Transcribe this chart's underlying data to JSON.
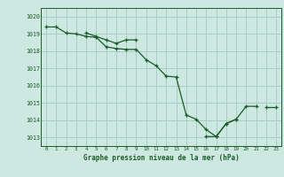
{
  "xlabel": "Graphe pression niveau de la mer (hPa)",
  "bg_color": "#cce8e0",
  "grid_color": "#a8ccc8",
  "line_color": "#1a5c28",
  "ylim": [
    1012.5,
    1020.5
  ],
  "xlim": [
    -0.5,
    23.5
  ],
  "yticks": [
    1013,
    1014,
    1015,
    1016,
    1017,
    1018,
    1019,
    1020
  ],
  "xticks": [
    0,
    1,
    2,
    3,
    4,
    5,
    6,
    7,
    8,
    9,
    10,
    11,
    12,
    13,
    14,
    15,
    16,
    17,
    18,
    19,
    20,
    21,
    22,
    23
  ],
  "series1": [
    1019.4,
    1019.4,
    1019.05,
    1019.0,
    1018.85,
    1018.8,
    1018.25,
    1018.15,
    1018.1,
    1018.1,
    1017.5,
    1017.15,
    1016.55,
    1016.5,
    1014.3,
    1014.05,
    1013.45,
    1013.05,
    1013.8,
    1014.05,
    1014.8,
    1014.8,
    null,
    null
  ],
  "series2": [
    null,
    null,
    null,
    null,
    1019.05,
    1018.85,
    1018.65,
    1018.45,
    1018.65,
    1018.65,
    null,
    null,
    null,
    null,
    null,
    null,
    null,
    null,
    null,
    null,
    null,
    null,
    null,
    null
  ],
  "series3": [
    null,
    null,
    null,
    null,
    null,
    null,
    null,
    null,
    null,
    null,
    null,
    null,
    null,
    null,
    null,
    null,
    1013.05,
    1013.05,
    1013.8,
    1014.05,
    null,
    null,
    1014.75,
    1014.75
  ]
}
